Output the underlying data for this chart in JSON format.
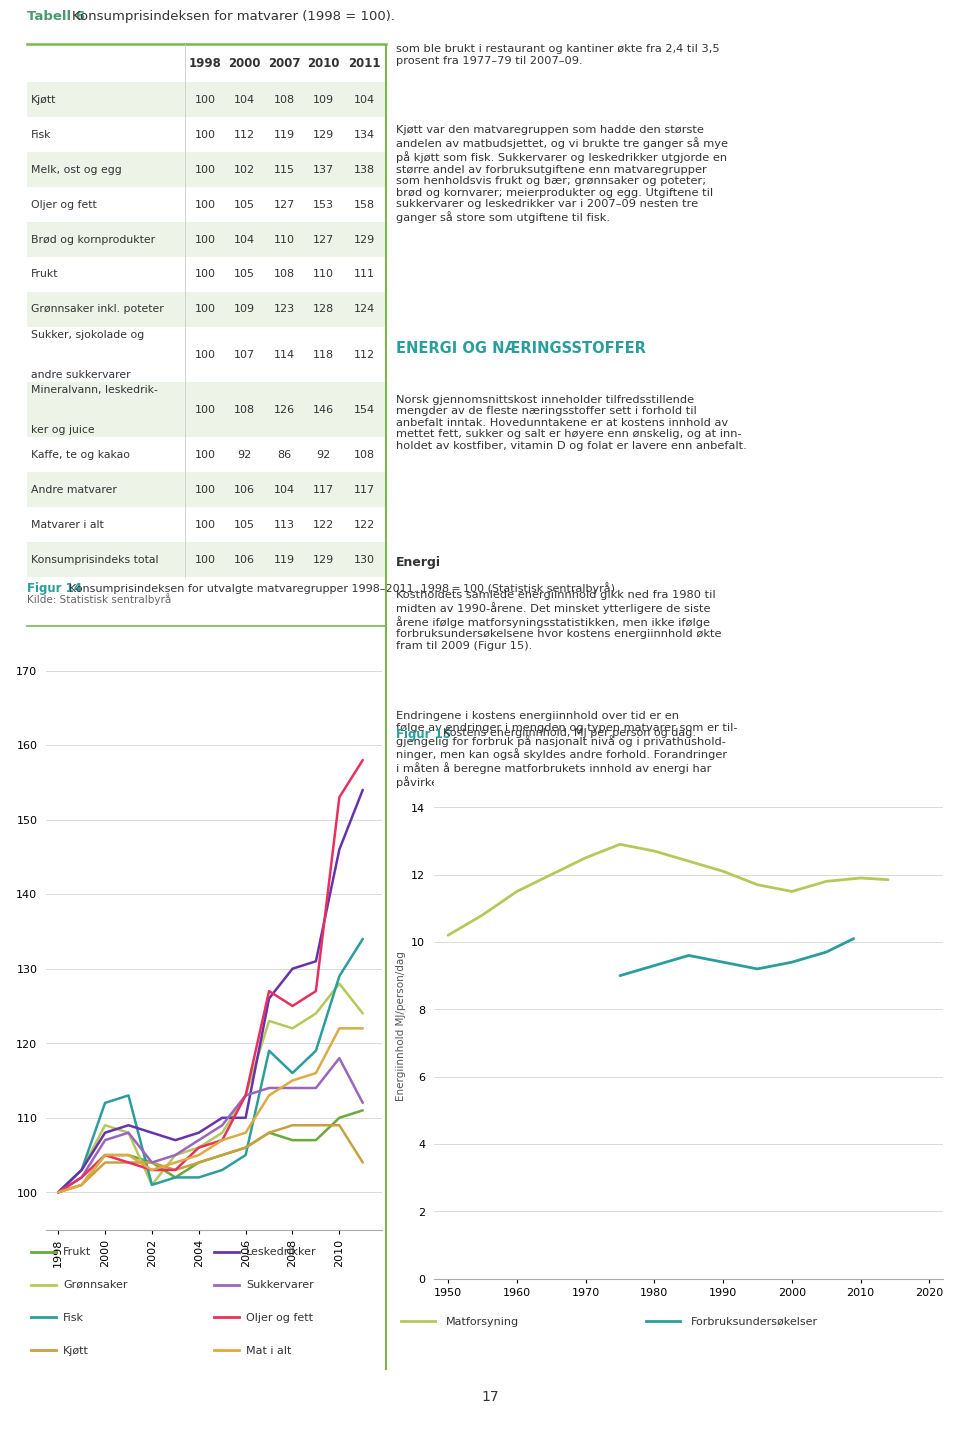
{
  "table_title": "Tabell 6",
  "table_subtitle": "Konsumprisindeksen for matvarer (1998 = 100).",
  "table_headers": [
    "",
    "1998",
    "2000",
    "2007",
    "2010",
    "2011"
  ],
  "table_rows": [
    [
      "Kjøtt",
      100,
      104,
      108,
      109,
      104
    ],
    [
      "Fisk",
      100,
      112,
      119,
      129,
      134
    ],
    [
      "Melk, ost og egg",
      100,
      102,
      115,
      137,
      138
    ],
    [
      "Oljer og fett",
      100,
      105,
      127,
      153,
      158
    ],
    [
      "Brød og kornprodukter",
      100,
      104,
      110,
      127,
      129
    ],
    [
      "Frukt",
      100,
      105,
      108,
      110,
      111
    ],
    [
      "Grønnsaker inkl. poteter",
      100,
      109,
      123,
      128,
      124
    ],
    [
      "Sukker, sjokolade og\nandre sukkervarer",
      100,
      107,
      114,
      118,
      112
    ],
    [
      "Mineralvann, leskedrik-\nker og juice",
      100,
      108,
      126,
      146,
      154
    ],
    [
      "Kaffe, te og kakao",
      100,
      92,
      86,
      92,
      108
    ],
    [
      "Andre matvarer",
      100,
      106,
      104,
      117,
      117
    ],
    [
      "Matvarer i alt",
      100,
      105,
      113,
      122,
      122
    ],
    [
      "Konsumprisindeks total",
      100,
      106,
      119,
      129,
      130
    ]
  ],
  "source_text": "Kilde: Statistisk sentralbyrå",
  "fig14_title_bold": "Figur 14",
  "fig14_title_rest": "Konsumprisindeksen for utvalgte matvaregrupper 1998–2011. 1998 = 100 (Statistisk sentralbyrå).",
  "chart_years": [
    1998,
    1999,
    2000,
    2001,
    2002,
    2003,
    2004,
    2005,
    2006,
    2007,
    2008,
    2009,
    2010,
    2011
  ],
  "series_order": [
    "Frukt",
    "Grønnsaker",
    "Fisk",
    "Kjøtt",
    "Leskedrikker",
    "Sukkervarer",
    "Oljer og fett",
    "Mat i alt"
  ],
  "series": {
    "Frukt": [
      100,
      101,
      105,
      105,
      104,
      102,
      104,
      105,
      106,
      108,
      107,
      107,
      110,
      111
    ],
    "Grønnsaker": [
      100,
      103,
      109,
      108,
      101,
      105,
      106,
      108,
      113,
      123,
      122,
      124,
      128,
      124
    ],
    "Fisk": [
      100,
      103,
      112,
      113,
      101,
      102,
      102,
      103,
      105,
      119,
      116,
      119,
      129,
      134
    ],
    "Kjøtt": [
      100,
      101,
      104,
      104,
      104,
      103,
      104,
      105,
      106,
      108,
      109,
      109,
      109,
      104
    ],
    "Leskedrikker": [
      100,
      103,
      108,
      109,
      108,
      107,
      108,
      110,
      110,
      126,
      130,
      131,
      146,
      154
    ],
    "Sukkervarer": [
      100,
      102,
      107,
      108,
      104,
      105,
      107,
      109,
      113,
      114,
      114,
      114,
      118,
      112
    ],
    "Oljer og fett": [
      100,
      102,
      105,
      104,
      103,
      103,
      106,
      107,
      113,
      127,
      125,
      127,
      153,
      158
    ],
    "Mat i alt": [
      100,
      101,
      105,
      105,
      103,
      104,
      105,
      107,
      108,
      113,
      115,
      116,
      122,
      122
    ]
  },
  "series_colors": {
    "Frukt": "#6aaa3a",
    "Grønnsaker": "#b5c95a",
    "Fisk": "#2a9d9d",
    "Kjøtt": "#c8a040",
    "Leskedrikker": "#6633aa",
    "Sukkervarer": "#9966bb",
    "Oljer og fett": "#e83060",
    "Mat i alt": "#ddaa44"
  },
  "chart_yticks": [
    100,
    110,
    120,
    130,
    140,
    150,
    160,
    170
  ],
  "chart_xticks": [
    1998,
    2000,
    2002,
    2004,
    2006,
    2008,
    2010
  ],
  "legend_col1": [
    "Frukt",
    "Grønnsaker",
    "Fisk",
    "Kjøtt"
  ],
  "legend_col2": [
    "Leskedrikker",
    "Sukkervarer",
    "Oljer og fett",
    "Mat i alt"
  ],
  "right_para1": "som ble brukt i restaurant og kantiner økte fra 2,4 til 3,5\nprosent fra 1977–79 til 2007–09.",
  "right_para2": "Kjøtt var den matvaregruppen som hadde den største\nandelen av matbudsjettet, og vi brukte tre ganger så mye\npå kjøtt som fisk. Sukkervarer og leskedrikker utgjorde en\nstørre andel av forbruksutgiftene enn matvaregrupper\nsom henholdsvis frukt og bær; grønnsaker og poteter;\nbrød og kornvarer; meierprodukter og egg. Utgiftene til\nsukkervarer og leskedrikker var i 2007–09 nesten tre\nganger så store som utgiftene til fisk.",
  "energi_heading": "ENERGI OG NÆRINGSSTOFFER",
  "right_para3": "Norsk gjennomsnittskost inneholder tilfredsstillende\nmengder av de fleste næringsstoffer sett i forhold til\nanbefalt inntak. Hovedunntakene er at kostens innhold av\nmettet fett, sukker og salt er høyere enn ønskelig, og at inn-\nholdet av kostfiber, vitamin D og folat er lavere enn anbefalt.",
  "energi_subheading": "Energi",
  "right_para4": "Kostholdets samlede energiinnhold gikk ned fra 1980 til\nmidten av 1990-årene. Det minsket ytterligere de siste\nårene ifølge matforsyningsstatistikken, men ikke ifølge\nforbruksundersøkelsene hvor kostens energiinnhold økte\nfram til 2009 (Figur 15).",
  "right_para5": "Endringene i kostens energiinnhold over tid er en\nfølge av endringer i mengden og typen matvarer som er til-\ngjengelig for forbruk på nasjonalt nivå og i privathushold-\nninger, men kan også skyldes andre forhold. Forandringer\ni måten å beregne matforbrukets innhold av energi har\npåvirket tallene.",
  "fig15_title_bold": "Figur 15",
  "fig15_title_rest": "Kostens energiinnhold, MJ per person og dag.",
  "fig15_mat_x": [
    1950,
    1955,
    1960,
    1965,
    1970,
    1975,
    1980,
    1985,
    1990,
    1995,
    2000,
    2005,
    2010,
    2014
  ],
  "fig15_mat_y": [
    10.2,
    10.8,
    11.5,
    12.0,
    12.5,
    12.9,
    12.7,
    12.4,
    12.1,
    11.7,
    11.5,
    11.8,
    11.9,
    11.85
  ],
  "fig15_forb_x": [
    1975,
    1980,
    1985,
    1990,
    1995,
    2000,
    2005,
    2009
  ],
  "fig15_forb_y": [
    9.0,
    9.3,
    9.6,
    9.4,
    9.2,
    9.4,
    9.7,
    10.1
  ],
  "fig15_color_mat": "#b5c95a",
  "fig15_color_forb": "#2a9d9d",
  "fig15_yticks": [
    0,
    2,
    4,
    6,
    8,
    10,
    12,
    14
  ],
  "fig15_xticks": [
    1950,
    1960,
    1970,
    1980,
    1990,
    2000,
    2010,
    2020
  ],
  "fig15_ylabel": "Energiinnhold MJ/person/dag",
  "page_number": "17",
  "green_line_color": "#7ab648",
  "teal_color": "#2a9d9d",
  "bg_color": "#ffffff",
  "even_row_color": "#eef3e8"
}
